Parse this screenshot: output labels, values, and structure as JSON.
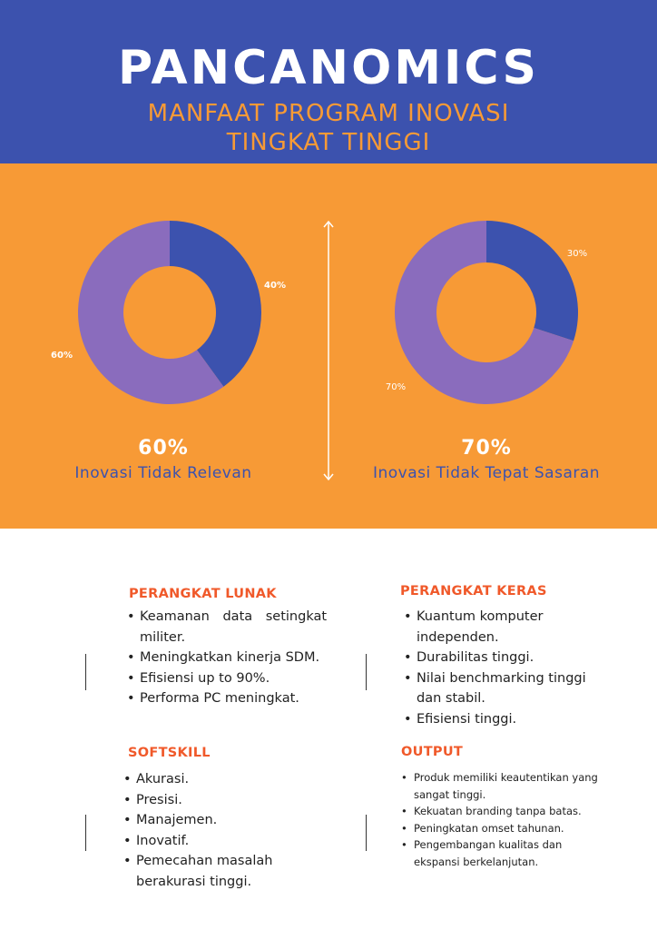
{
  "header": {
    "brand": "PANCANOMICS",
    "subtitle_line1": "MANFAAT PROGRAM INOVASI",
    "subtitle_line2": "TINGKAT TINGGI"
  },
  "colors": {
    "header_bg": "#3c52ae",
    "band_bg": "#f79a36",
    "slice_blue": "#3c52ae",
    "slice_purple": "#8a6cbd",
    "section_title": "#f0592a"
  },
  "chart_data": [
    {
      "type": "pie",
      "donut": true,
      "slices": [
        {
          "label": "40%",
          "value": 40,
          "color": "#3c52ae"
        },
        {
          "label": "60%",
          "value": 60,
          "color": "#8a6cbd"
        }
      ],
      "stat": "60%",
      "caption": "Inovasi Tidak Relevan"
    },
    {
      "type": "pie",
      "donut": true,
      "slices": [
        {
          "label": "30%",
          "value": 30,
          "color": "#3c52ae"
        },
        {
          "label": "70%",
          "value": 70,
          "color": "#8a6cbd"
        }
      ],
      "stat": "70%",
      "caption": "Inovasi Tidak Tepat Sasaran"
    }
  ],
  "sections": {
    "perangkat_lunak": {
      "title": "PERANGKAT LUNAK",
      "items": [
        "Keamanan data setingkat",
        "militer.",
        "Meningkatkan kinerja SDM.",
        "Efisiensi up to 90%.",
        "Performa PC meningkat."
      ]
    },
    "perangkat_keras": {
      "title": "PERANGKAT KERAS",
      "items": [
        "Kuantum komputer",
        "independen.",
        "Durabilitas tinggi.",
        "Nilai benchmarking tinggi",
        "dan stabil.",
        "Efisiensi tinggi."
      ]
    },
    "softskill": {
      "title": "SOFTSKILL",
      "items": [
        "Akurasi.",
        "Presisi.",
        "Manajemen.",
        "Inovatif.",
        "Pemecahan masalah",
        "berakurasi tinggi."
      ]
    },
    "output": {
      "title": "OUTPUT",
      "items": [
        "Produk memiliki keautentikan yang",
        "sangat tinggi.",
        "Kekuatan branding tanpa batas.",
        "Peningkatan omset tahunan.",
        "Pengembangan kualitas dan",
        "ekspansi berkelanjutan."
      ]
    }
  }
}
